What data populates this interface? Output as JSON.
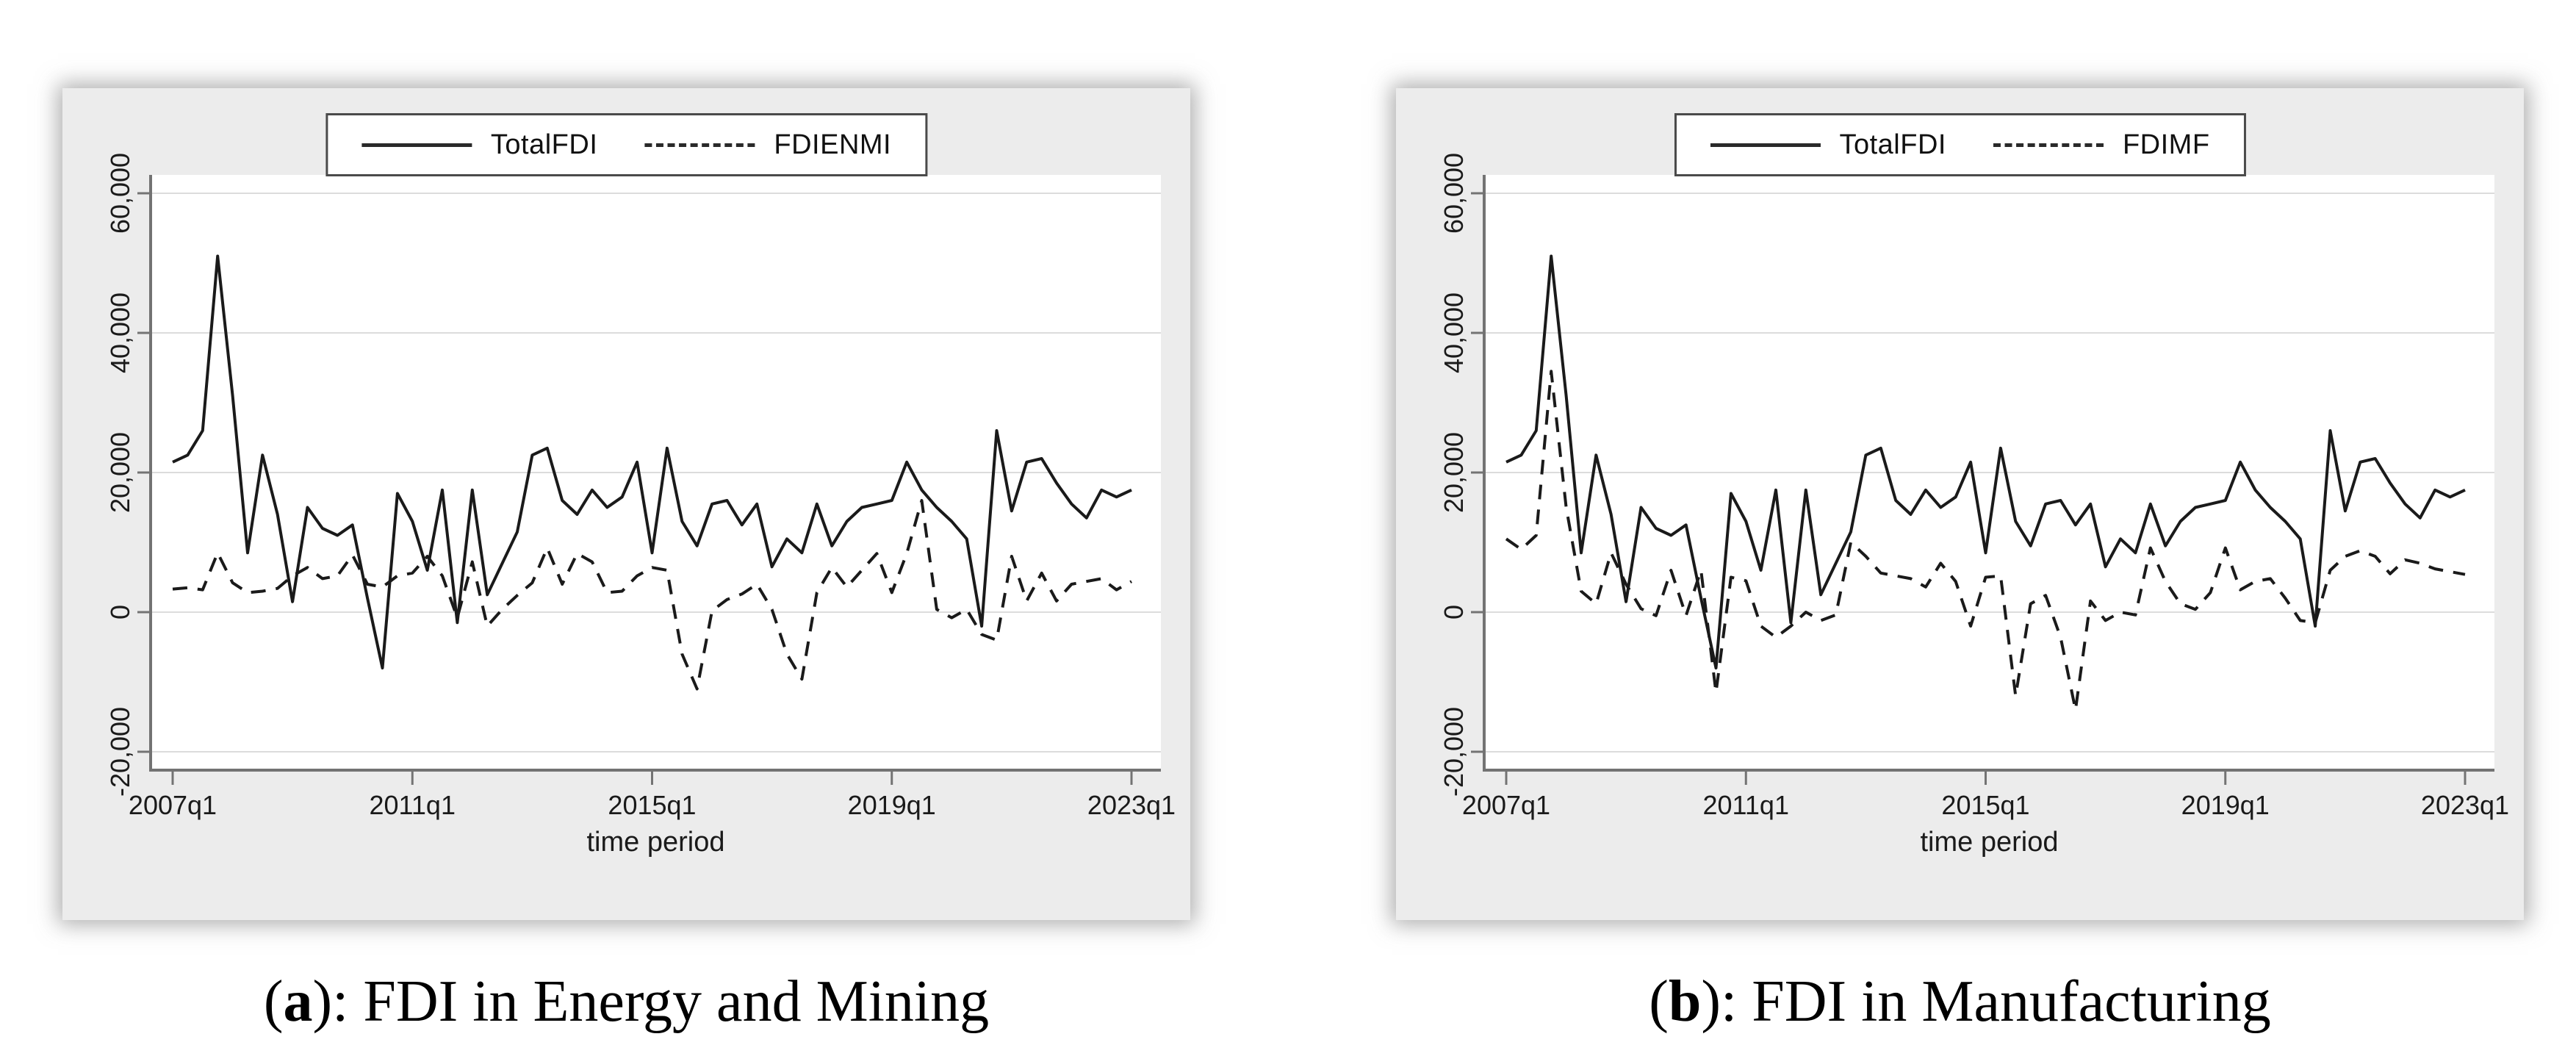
{
  "colors": {
    "page_background": "#ffffff",
    "figure_background": "#ececec",
    "plot_background": "#ffffff",
    "gridline": "#dcdcdc",
    "axis": "#737373",
    "series_line": "#1a1a1a",
    "legend_border": "#4a4a4a",
    "tick_label": "#1a1a1a"
  },
  "figures": [
    {
      "caption_open": "(",
      "caption_letter": "a",
      "caption_rest": "): FDI in Energy and Mining"
    },
    {
      "caption_open": "(",
      "caption_letter": "b",
      "caption_rest": "): FDI in Manufacturing"
    }
  ],
  "chart_data": [
    {
      "type": "line",
      "title": "",
      "xlabel": "time period",
      "ylabel": "",
      "x_unit": "quarterly",
      "x_start": "2007q1",
      "x_end": "2023q1",
      "x_points": 65,
      "x_tick_labels": [
        "2007q1",
        "2011q1",
        "2015q1",
        "2019q1",
        "2023q1"
      ],
      "x_tick_quarters": [
        0,
        16,
        32,
        48,
        64
      ],
      "y_tick_values": [
        60000,
        40000,
        20000,
        0,
        -20000
      ],
      "y_tick_labels": [
        "60,000",
        "40,000",
        "20,000",
        "0",
        "-20,000"
      ],
      "ylim": [
        -22600,
        62600
      ],
      "grid": "horizontal",
      "legend_position": "top-center",
      "series": [
        {
          "name": "TotalFDI",
          "style": "solid",
          "color": "#1a1a1a",
          "values": [
            21500,
            22500,
            26000,
            51000,
            31000,
            8500,
            22500,
            14000,
            1500,
            15000,
            12000,
            11000,
            12500,
            2000,
            -8000,
            17000,
            13000,
            6000,
            17500,
            -1500,
            17500,
            2500,
            7000,
            11500,
            22500,
            23500,
            16000,
            14000,
            17500,
            15000,
            16500,
            21500,
            8500,
            23500,
            13000,
            9500,
            15500,
            16000,
            12500,
            15500,
            6500,
            10500,
            8500,
            15500,
            9500,
            13000,
            15000,
            15500,
            16000,
            21500,
            17500,
            15000,
            13000,
            10500,
            -2000,
            26000,
            14500,
            21500,
            22000,
            18500,
            15500,
            13500,
            17500,
            16500,
            17500
          ]
        },
        {
          "name": "FDIENMI",
          "style": "dashed",
          "color": "#1a1a1a",
          "values": [
            3300,
            3500,
            3200,
            8500,
            4200,
            2800,
            3000,
            3400,
            5200,
            6400,
            4800,
            5200,
            8200,
            4000,
            3600,
            5200,
            5600,
            8000,
            5200,
            -800,
            7200,
            -2000,
            400,
            2400,
            4200,
            9200,
            4000,
            8400,
            7200,
            2800,
            3000,
            5200,
            6400,
            6000,
            -6000,
            -11000,
            200,
            1800,
            2600,
            4000,
            400,
            -6000,
            -9600,
            2800,
            6400,
            3600,
            6000,
            8400,
            2800,
            8400,
            16000,
            400,
            -800,
            400,
            -3200,
            -4000,
            8000,
            1600,
            5600,
            1600,
            4000,
            4400,
            4800,
            3200,
            4400
          ]
        }
      ]
    },
    {
      "type": "line",
      "title": "",
      "xlabel": "time period",
      "ylabel": "",
      "x_unit": "quarterly",
      "x_start": "2007q1",
      "x_end": "2023q1",
      "x_points": 65,
      "x_tick_labels": [
        "2007q1",
        "2011q1",
        "2015q1",
        "2019q1",
        "2023q1"
      ],
      "x_tick_quarters": [
        0,
        16,
        32,
        48,
        64
      ],
      "y_tick_values": [
        60000,
        40000,
        20000,
        0,
        -20000
      ],
      "y_tick_labels": [
        "60,000",
        "40,000",
        "20,000",
        "0",
        "-20,000"
      ],
      "ylim": [
        -22600,
        62600
      ],
      "grid": "horizontal",
      "legend_position": "top-center",
      "series": [
        {
          "name": "TotalFDI",
          "style": "solid",
          "color": "#1a1a1a",
          "values": [
            21500,
            22500,
            26000,
            51000,
            31000,
            8500,
            22500,
            14000,
            1500,
            15000,
            12000,
            11000,
            12500,
            2000,
            -8000,
            17000,
            13000,
            6000,
            17500,
            -1500,
            17500,
            2500,
            7000,
            11500,
            22500,
            23500,
            16000,
            14000,
            17500,
            15000,
            16500,
            21500,
            8500,
            23500,
            13000,
            9500,
            15500,
            16000,
            12500,
            15500,
            6500,
            10500,
            8500,
            15500,
            9500,
            13000,
            15000,
            15500,
            16000,
            21500,
            17500,
            15000,
            13000,
            10500,
            -2000,
            26000,
            14500,
            21500,
            22000,
            18500,
            15500,
            13500,
            17500,
            16500,
            17500
          ]
        },
        {
          "name": "FDIMF",
          "style": "dashed",
          "color": "#1a1a1a",
          "values": [
            10500,
            9000,
            11000,
            34500,
            15000,
            3000,
            1200,
            8500,
            4000,
            500,
            -500,
            6000,
            -500,
            6000,
            -11500,
            5000,
            4500,
            -2000,
            -3600,
            -2000,
            0,
            -1200,
            -400,
            10000,
            8000,
            5600,
            5200,
            4800,
            3600,
            7000,
            4400,
            -2000,
            5000,
            5200,
            -12000,
            1200,
            2400,
            -3600,
            -14000,
            1600,
            -1200,
            0,
            -400,
            9200,
            4400,
            1200,
            400,
            2800,
            9200,
            3200,
            4400,
            4800,
            2000,
            -1200,
            -1500,
            6000,
            8000,
            8800,
            8000,
            5500,
            7500,
            7000,
            6200,
            5800,
            5400
          ]
        }
      ]
    }
  ]
}
